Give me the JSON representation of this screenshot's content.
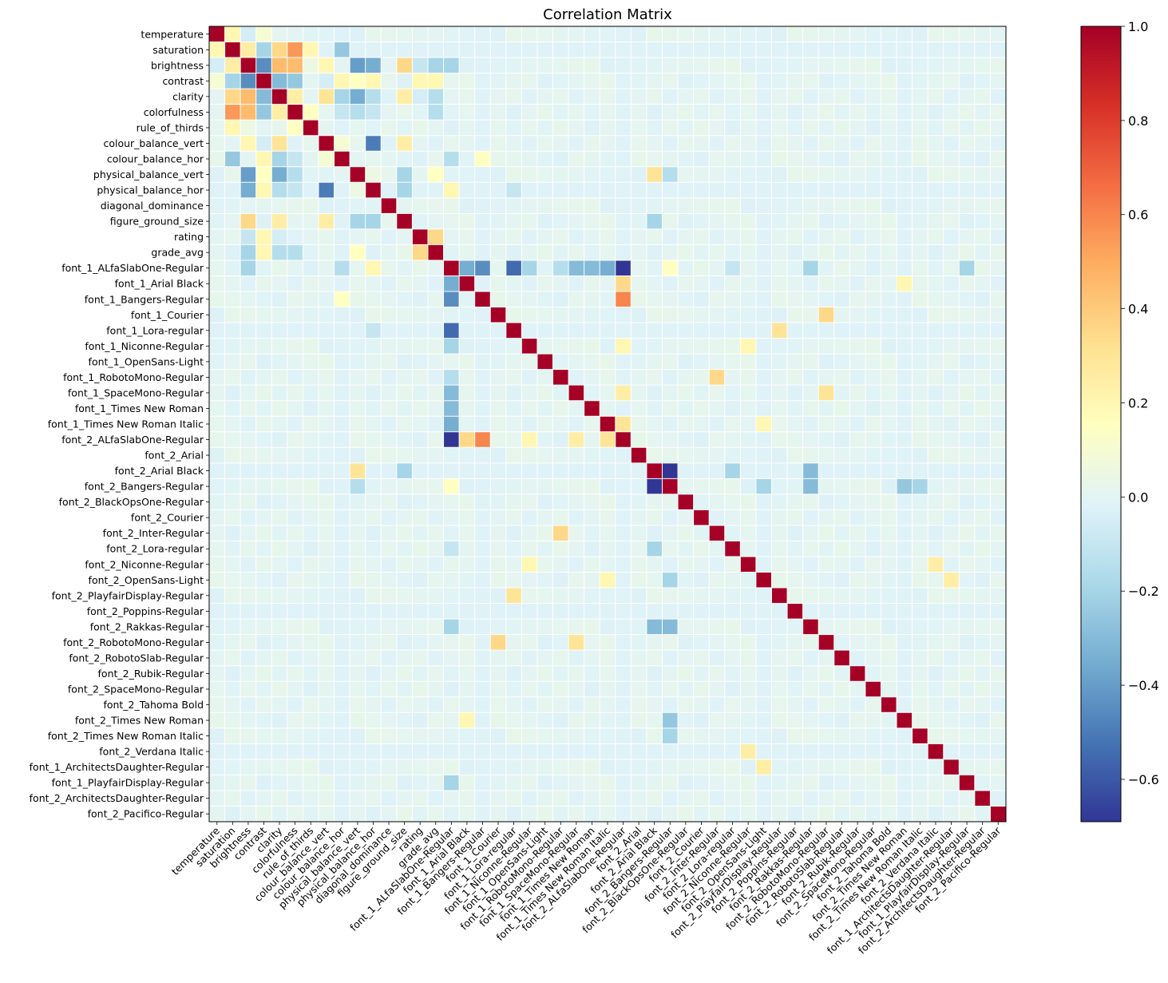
{
  "chart_data": {
    "type": "heatmap",
    "title": "Correlation Matrix",
    "labels": [
      "temperature",
      "saturation",
      "brightness",
      "contrast",
      "clarity",
      "colorfulness",
      "rule_of_thirds",
      "colour_balance_vert",
      "colour_balance_hor",
      "physical_balance_vert",
      "physical_balance_hor",
      "diagonal_dominance",
      "figure_ground_size",
      "rating",
      "grade_avg",
      "font_1_ALfaSlabOne-Regular",
      "font_1_Arial Black",
      "font_1_Bangers-Regular",
      "font_1_Courier",
      "font_1_Lora-regular",
      "font_1_Niconne-Regular",
      "font_1_OpenSans-Light",
      "font_1_RobotoMono-Regular",
      "font_1_SpaceMono-Regular",
      "font_1_Times New Roman",
      "font_1_Times New Roman Italic",
      "font_2_ALfaSlabOne-Regular",
      "font_2_Arial",
      "font_2_Arial Black",
      "font_2_Bangers-Regular",
      "font_2_BlackOpsOne-Regular",
      "font_2_Courier",
      "font_2_Inter-Regular",
      "font_2_Lora-regular",
      "font_2_Niconne-Regular",
      "font_2_OpenSans-Light",
      "font_2_PlayfairDisplay-Regular",
      "font_2_Poppins-Regular",
      "font_2_Rakkas-Regular",
      "font_2_RobotoMono-Regular",
      "font_2_RobotoSlab-Regular",
      "font_2_Rubik-Regular",
      "font_2_SpaceMono-Regular",
      "font_2_Tahoma Bold",
      "font_2_Times New Roman",
      "font_2_Times New Roman Italic",
      "font_2_Verdana Italic",
      "font_1_ArchitectsDaughter-Regular",
      "font_1_PlayfairDisplay-Regular",
      "font_2_ArchitectsDaughter-Regular",
      "font_2_Pacifico-Regular"
    ],
    "pairs": [
      [
        0,
        1,
        0.2
      ],
      [
        0,
        2,
        -0.05
      ],
      [
        0,
        3,
        0.1
      ],
      [
        1,
        2,
        0.25
      ],
      [
        1,
        3,
        -0.2
      ],
      [
        1,
        4,
        0.35
      ],
      [
        1,
        5,
        0.55
      ],
      [
        1,
        6,
        0.2
      ],
      [
        1,
        8,
        -0.25
      ],
      [
        2,
        3,
        -0.45
      ],
      [
        2,
        4,
        0.45
      ],
      [
        2,
        5,
        0.45
      ],
      [
        2,
        6,
        0.05
      ],
      [
        2,
        7,
        0.2
      ],
      [
        2,
        8,
        0.0
      ],
      [
        2,
        9,
        -0.4
      ],
      [
        2,
        10,
        -0.35
      ],
      [
        2,
        12,
        0.35
      ],
      [
        2,
        13,
        -0.1
      ],
      [
        2,
        14,
        -0.2
      ],
      [
        2,
        15,
        -0.2
      ],
      [
        3,
        4,
        -0.3
      ],
      [
        3,
        5,
        -0.25
      ],
      [
        3,
        6,
        0.0
      ],
      [
        3,
        7,
        -0.05
      ],
      [
        3,
        8,
        0.2
      ],
      [
        3,
        9,
        0.15
      ],
      [
        3,
        10,
        0.2
      ],
      [
        3,
        13,
        0.2
      ],
      [
        3,
        14,
        0.2
      ],
      [
        4,
        5,
        0.25
      ],
      [
        4,
        7,
        0.3
      ],
      [
        4,
        8,
        -0.2
      ],
      [
        4,
        9,
        -0.35
      ],
      [
        4,
        10,
        -0.15
      ],
      [
        4,
        12,
        0.25
      ],
      [
        4,
        13,
        -0.05
      ],
      [
        4,
        14,
        -0.15
      ],
      [
        5,
        6,
        0.15
      ],
      [
        5,
        8,
        -0.1
      ],
      [
        5,
        9,
        -0.15
      ],
      [
        5,
        10,
        -0.1
      ],
      [
        5,
        14,
        -0.15
      ],
      [
        7,
        8,
        0.1
      ],
      [
        7,
        10,
        -0.5
      ],
      [
        7,
        12,
        0.25
      ],
      [
        8,
        9,
        0.0
      ],
      [
        8,
        15,
        -0.15
      ],
      [
        8,
        17,
        0.15
      ],
      [
        9,
        10,
        0.05
      ],
      [
        9,
        12,
        -0.2
      ],
      [
        9,
        14,
        0.15
      ],
      [
        9,
        28,
        0.3
      ],
      [
        9,
        29,
        -0.15
      ],
      [
        10,
        12,
        -0.2
      ],
      [
        10,
        15,
        0.2
      ],
      [
        10,
        19,
        -0.1
      ],
      [
        12,
        28,
        -0.2
      ],
      [
        13,
        14,
        0.35
      ],
      [
        15,
        16,
        -0.35
      ],
      [
        15,
        17,
        -0.45
      ],
      [
        15,
        19,
        -0.55
      ],
      [
        15,
        20,
        -0.2
      ],
      [
        15,
        22,
        -0.15
      ],
      [
        15,
        23,
        -0.3
      ],
      [
        15,
        24,
        -0.3
      ],
      [
        15,
        25,
        -0.35
      ],
      [
        15,
        26,
        -0.69
      ],
      [
        15,
        29,
        0.15
      ],
      [
        15,
        33,
        -0.1
      ],
      [
        15,
        38,
        -0.2
      ],
      [
        15,
        48,
        -0.2
      ],
      [
        16,
        26,
        0.35
      ],
      [
        16,
        44,
        0.2
      ],
      [
        17,
        26,
        0.6
      ],
      [
        18,
        39,
        0.35
      ],
      [
        19,
        36,
        0.3
      ],
      [
        20,
        26,
        0.2
      ],
      [
        20,
        34,
        0.2
      ],
      [
        22,
        32,
        0.35
      ],
      [
        23,
        26,
        0.25
      ],
      [
        23,
        39,
        0.3
      ],
      [
        25,
        26,
        0.3
      ],
      [
        25,
        35,
        0.2
      ],
      [
        28,
        29,
        -0.69
      ],
      [
        28,
        33,
        -0.2
      ],
      [
        28,
        38,
        -0.3
      ],
      [
        29,
        35,
        -0.2
      ],
      [
        29,
        38,
        -0.3
      ],
      [
        29,
        44,
        -0.25
      ],
      [
        29,
        45,
        -0.2
      ],
      [
        34,
        46,
        0.25
      ],
      [
        35,
        47,
        0.25
      ]
    ],
    "colorbar": {
      "min": -0.69,
      "max": 1.0,
      "ticks": [
        "1.0",
        "0.8",
        "0.6",
        "0.4",
        "0.2",
        "0.0",
        "−0.2",
        "−0.4",
        "−0.6"
      ],
      "tick_values": [
        1.0,
        0.8,
        0.6,
        0.4,
        0.2,
        0.0,
        -0.2,
        -0.4,
        -0.6
      ]
    },
    "colormap": "RdYlBu_r",
    "grid": true
  }
}
